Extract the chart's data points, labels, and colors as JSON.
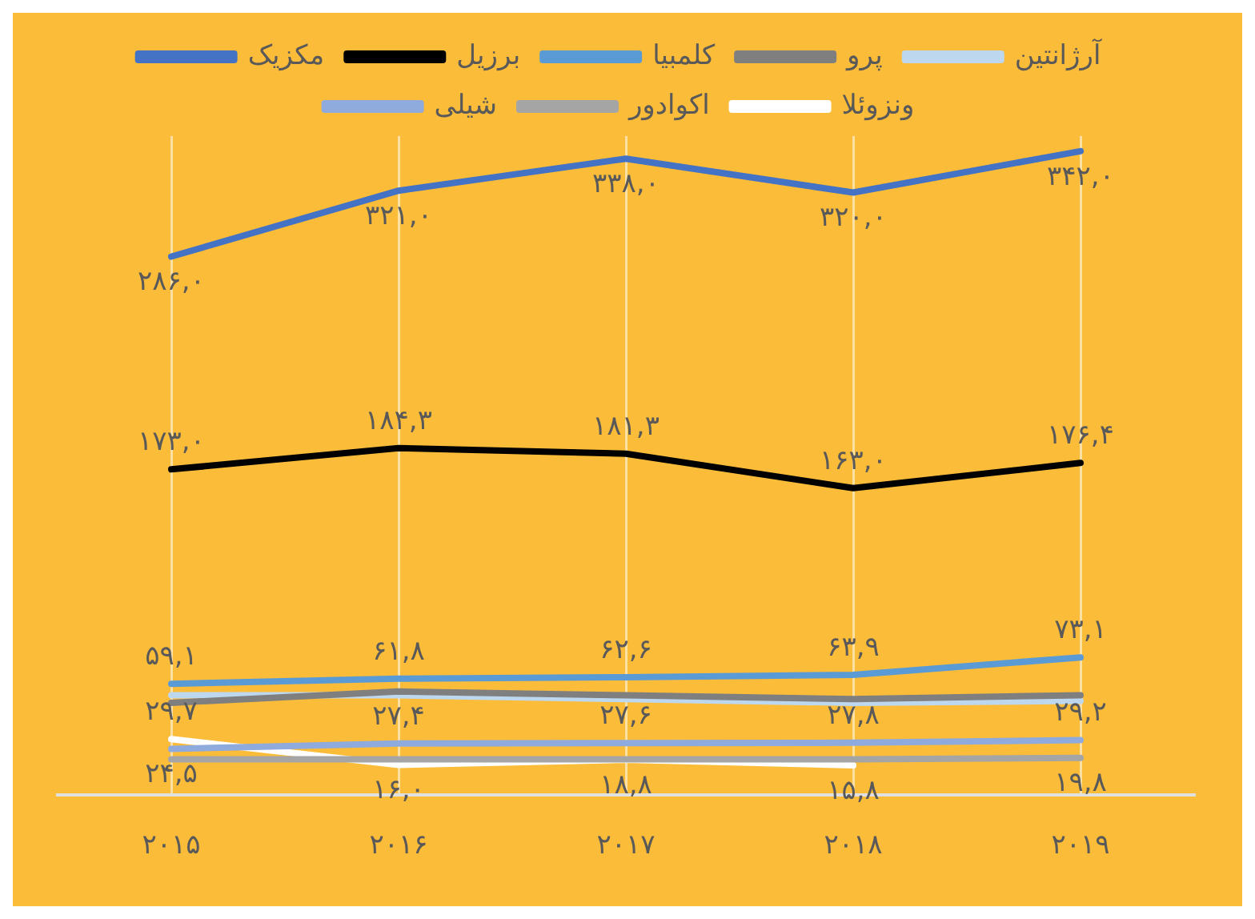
{
  "chart_data": {
    "type": "line",
    "categories": [
      "۲۰۱۵",
      "۲۰۱۶",
      "۲۰۱۷",
      "۲۰۱۸",
      "۲۰۱۹"
    ],
    "series": [
      {
        "name": "مکزیک",
        "color": "#4472c4",
        "values": [
          286.0,
          321.0,
          338.0,
          320.0,
          342.0
        ],
        "value_labels": [
          "۲۸۶,۰",
          "۳۲۱,۰",
          "۳۳۸,۰",
          "۳۲۰,۰",
          "۳۴۲,۰"
        ]
      },
      {
        "name": "برزیل",
        "color": "#000000",
        "values": [
          173.0,
          184.3,
          181.3,
          163.0,
          176.4
        ],
        "value_labels": [
          "۱۷۳,۰",
          "۱۸۴,۳",
          "۱۸۱,۳",
          "۱۶۳,۰",
          "۱۷۶,۴"
        ]
      },
      {
        "name": "کلمبیا",
        "color": "#5b9bd5",
        "values": [
          59.1,
          61.8,
          62.6,
          63.9,
          73.1
        ],
        "value_labels": [
          "۵۹,۱",
          "۶۱,۸",
          "۶۲,۶",
          "۶۳,۹",
          "۷۳,۱"
        ]
      },
      {
        "name": "پرو",
        "color": "#7f7f7f",
        "values": [
          49,
          55,
          53,
          51,
          53
        ]
      },
      {
        "name": "آرژانتین",
        "color": "#bdd7ee",
        "values": [
          53,
          53,
          51,
          49,
          50
        ]
      },
      {
        "name": "شیلی",
        "color": "#8faadc",
        "values": [
          24.5,
          27.4,
          27.6,
          27.8,
          29.2
        ],
        "value_labels": [
          "۲۴,۵",
          "۲۷,۴",
          "۲۷,۶",
          "۲۷,۸",
          "۲۹,۲"
        ]
      },
      {
        "name": "اکوادور",
        "color": "#a5a5a5",
        "values": [
          19,
          19,
          19,
          19,
          19.8
        ],
        "value_labels": [
          null,
          null,
          null,
          null,
          "۱۹,۸"
        ]
      },
      {
        "name": "ونزوئلا",
        "color": "#ffffff",
        "values": [
          29.7,
          16.0,
          18.8,
          15.8,
          null
        ],
        "value_labels": [
          "۲۹,۷",
          "۱۶,۰",
          "۱۸,۸",
          "۱۵,۸",
          null
        ]
      }
    ],
    "grid": "x",
    "legend": "top"
  }
}
